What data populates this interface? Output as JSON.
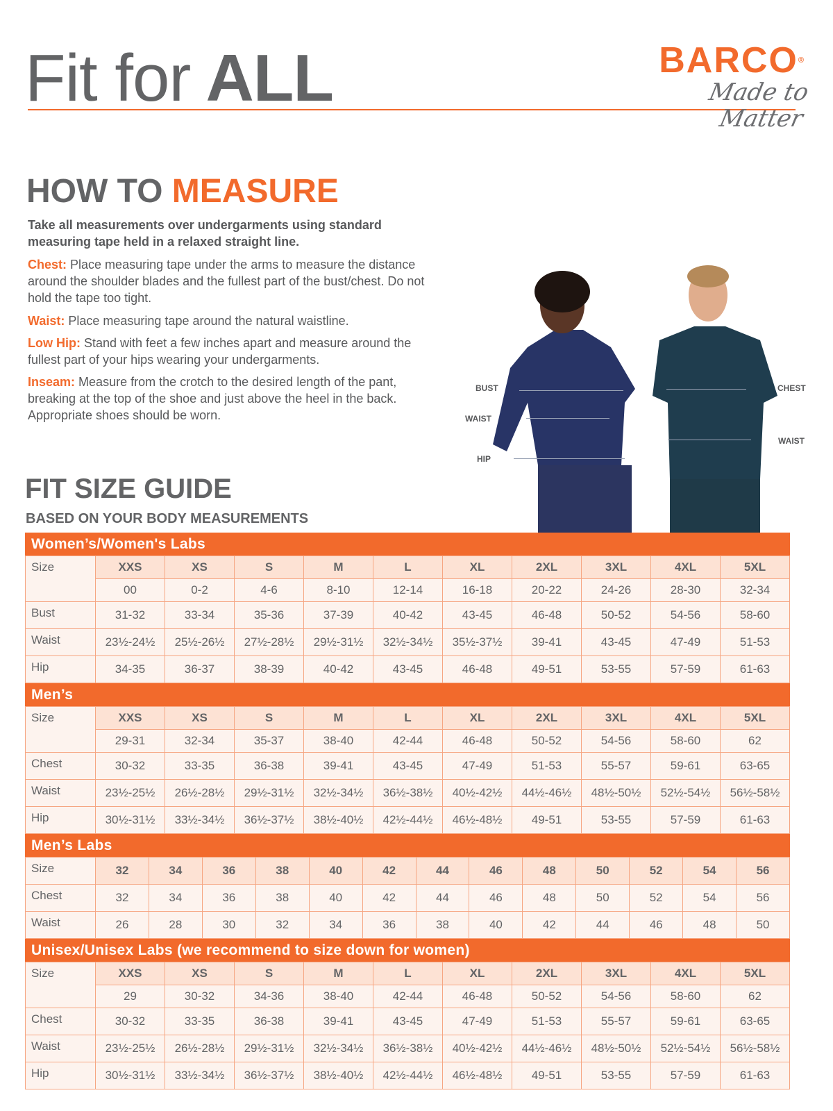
{
  "header": {
    "title_regular": "Fit for",
    "title_bold": "ALL",
    "logo_brand": "BARCO",
    "logo_registered": "®",
    "logo_tagline": "Made to Matter",
    "accent_color": "#f26a2c"
  },
  "how_to_measure": {
    "heading_gray": "HOW TO",
    "heading_orange": "MEASURE",
    "intro": "Take all measurements over undergarments using standard measuring tape held in a relaxed straight line.",
    "items": [
      {
        "label": "Chest:",
        "text": "Place measuring tape under the arms to measure the distance around the shoulder blades and the fullest part of the bust/chest. Do not hold the tape too tight."
      },
      {
        "label": "Waist:",
        "text": "Place measuring tape around the natural waistline."
      },
      {
        "label": "Low Hip:",
        "text": "Stand with feet a few inches apart and measure around the fullest part of your hips wearing your undergarments."
      },
      {
        "label": "Inseam:",
        "text": "Measure from the crotch to the desired length of the pant, breaking at the top of the shoe and just above the heel in the back. Appropriate shoes should be worn."
      }
    ]
  },
  "figure_labels": {
    "woman": [
      "BUST",
      "WAIST",
      "HIP"
    ],
    "man": [
      "CHEST",
      "WAIST"
    ]
  },
  "fit_guide": {
    "heading": "FIT SIZE GUIDE",
    "subheading": "BASED ON YOUR BODY MEASUREMENTS",
    "sections": [
      {
        "title": "Women’s/Women's Labs",
        "rows": [
          {
            "label": "Size",
            "sizes": true,
            "values": [
              "XXS",
              "XS",
              "S",
              "M",
              "L",
              "XL",
              "2XL",
              "3XL",
              "4XL",
              "5XL"
            ]
          },
          {
            "label": "",
            "values": [
              "00",
              "0-2",
              "4-6",
              "8-10",
              "12-14",
              "16-18",
              "20-22",
              "24-26",
              "28-30",
              "32-34"
            ]
          },
          {
            "label": "Bust",
            "values": [
              "31-32",
              "33-34",
              "35-36",
              "37-39",
              "40-42",
              "43-45",
              "46-48",
              "50-52",
              "54-56",
              "58-60"
            ]
          },
          {
            "label": "Waist",
            "values": [
              "23½-24½",
              "25½-26½",
              "27½-28½",
              "29½-31½",
              "32½-34½",
              "35½-37½",
              "39-41",
              "43-45",
              "47-49",
              "51-53"
            ]
          },
          {
            "label": "Hip",
            "values": [
              "34-35",
              "36-37",
              "38-39",
              "40-42",
              "43-45",
              "46-48",
              "49-51",
              "53-55",
              "57-59",
              "61-63"
            ]
          }
        ]
      },
      {
        "title": "Men’s",
        "rows": [
          {
            "label": "Size",
            "sizes": true,
            "values": [
              "XXS",
              "XS",
              "S",
              "M",
              "L",
              "XL",
              "2XL",
              "3XL",
              "4XL",
              "5XL"
            ]
          },
          {
            "label": "",
            "values": [
              "29-31",
              "32-34",
              "35-37",
              "38-40",
              "42-44",
              "46-48",
              "50-52",
              "54-56",
              "58-60",
              "62"
            ]
          },
          {
            "label": "Chest",
            "values": [
              "30-32",
              "33-35",
              "36-38",
              "39-41",
              "43-45",
              "47-49",
              "51-53",
              "55-57",
              "59-61",
              "63-65"
            ]
          },
          {
            "label": "Waist",
            "values": [
              "23½-25½",
              "26½-28½",
              "29½-31½",
              "32½-34½",
              "36½-38½",
              "40½-42½",
              "44½-46½",
              "48½-50½",
              "52½-54½",
              "56½-58½"
            ]
          },
          {
            "label": "Hip",
            "values": [
              "30½-31½",
              "33½-34½",
              "36½-37½",
              "38½-40½",
              "42½-44½",
              "46½-48½",
              "49-51",
              "53-55",
              "57-59",
              "61-63"
            ]
          }
        ]
      },
      {
        "title": "Men’s Labs",
        "rows": [
          {
            "label": "Size",
            "sizes": true,
            "values": [
              "32",
              "34",
              "36",
              "38",
              "40",
              "42",
              "44",
              "46",
              "48",
              "50",
              "52",
              "54",
              "56"
            ]
          },
          {
            "label": "Chest",
            "values": [
              "32",
              "34",
              "36",
              "38",
              "40",
              "42",
              "44",
              "46",
              "48",
              "50",
              "52",
              "54",
              "56"
            ]
          },
          {
            "label": "Waist",
            "values": [
              "26",
              "28",
              "30",
              "32",
              "34",
              "36",
              "38",
              "40",
              "42",
              "44",
              "46",
              "48",
              "50"
            ]
          }
        ]
      },
      {
        "title": "Unisex/Unisex Labs (we recommend to size down for women)",
        "rows": [
          {
            "label": "Size",
            "sizes": true,
            "values": [
              "XXS",
              "XS",
              "S",
              "M",
              "L",
              "XL",
              "2XL",
              "3XL",
              "4XL",
              "5XL"
            ]
          },
          {
            "label": "",
            "values": [
              "29",
              "30-32",
              "34-36",
              "38-40",
              "42-44",
              "46-48",
              "50-52",
              "54-56",
              "58-60",
              "62"
            ]
          },
          {
            "label": "Chest",
            "values": [
              "30-32",
              "33-35",
              "36-38",
              "39-41",
              "43-45",
              "47-49",
              "51-53",
              "55-57",
              "59-61",
              "63-65"
            ]
          },
          {
            "label": "Waist",
            "values": [
              "23½-25½",
              "26½-28½",
              "29½-31½",
              "32½-34½",
              "36½-38½",
              "40½-42½",
              "44½-46½",
              "48½-50½",
              "52½-54½",
              "56½-58½"
            ]
          },
          {
            "label": "Hip",
            "values": [
              "30½-31½",
              "33½-34½",
              "36½-37½",
              "38½-40½",
              "42½-44½",
              "46½-48½",
              "49-51",
              "53-55",
              "57-59",
              "61-63"
            ]
          }
        ]
      }
    ]
  }
}
